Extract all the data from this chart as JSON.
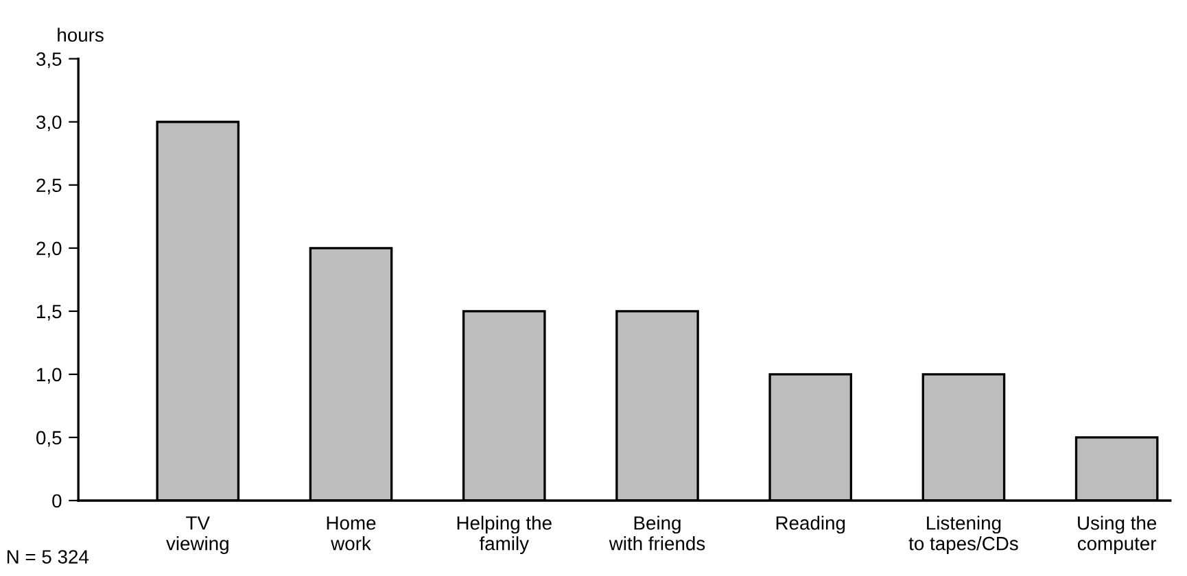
{
  "chart_data": {
    "type": "bar",
    "ylabel": "hours",
    "categories": [
      "TV\nviewing",
      "Home\nwork",
      "Helping the\nfamily",
      "Being\nwith friends",
      "Reading",
      "Listening\nto tapes/CDs",
      "Using the\ncomputer"
    ],
    "values": [
      3.0,
      2.0,
      1.5,
      1.5,
      1.0,
      1.0,
      0.5
    ],
    "color": "#bdbdbd",
    "ylim": [
      0,
      3.5
    ],
    "yticks": [
      0,
      {
        "value": 0.5,
        "label": "0,5"
      },
      {
        "value": 1.0,
        "label": "1,0"
      },
      {
        "value": 1.5,
        "label": "1,5"
      },
      {
        "value": 2.0,
        "label": "2,0"
      },
      {
        "value": 2.5,
        "label": "2,5"
      },
      {
        "value": 3.0,
        "label": "3,0"
      },
      {
        "value": 3.5,
        "label": "3,5"
      }
    ],
    "annotations": [
      "N = 5 324"
    ],
    "grid": false
  }
}
